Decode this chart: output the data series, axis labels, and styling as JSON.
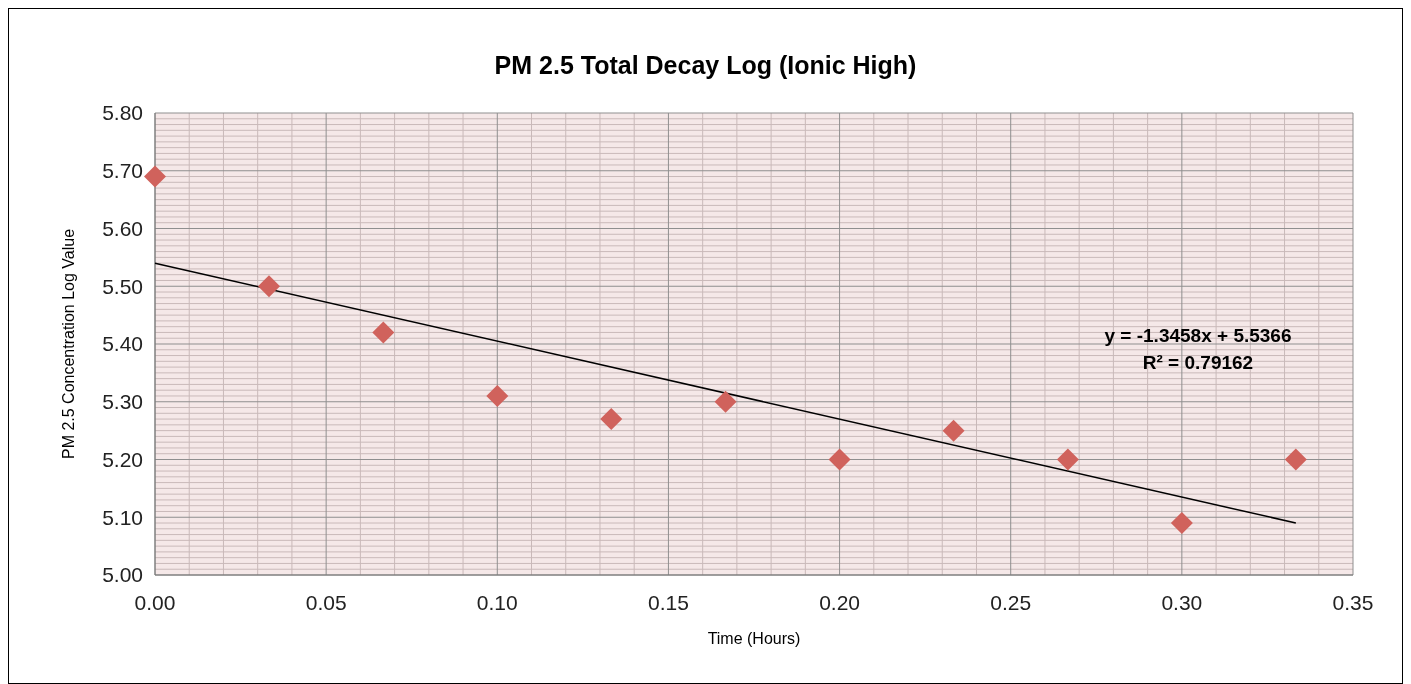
{
  "chart_data": {
    "type": "scatter",
    "title": "PM 2.5 Total Decay Log (Ionic High)",
    "xlabel": "Time (Hours)",
    "ylabel": "PM 2.5 Concentration Log Value",
    "xlim": [
      0,
      0.35
    ],
    "xticks": [
      {
        "value": 0,
        "label": "0.00"
      },
      {
        "value": 0.05,
        "label": "0.05"
      },
      {
        "value": 0.1,
        "label": "0.10"
      },
      {
        "value": 0.15,
        "label": "0.15"
      },
      {
        "value": 0.2,
        "label": "0.20"
      },
      {
        "value": 0.25,
        "label": "0.25"
      },
      {
        "value": 0.3,
        "label": "0.30"
      },
      {
        "value": 0.35,
        "label": "0.35"
      }
    ],
    "ylim": [
      5,
      5.8
    ],
    "yticks": [
      {
        "value": 5,
        "label": "5.00"
      },
      {
        "value": 5.1,
        "label": "5.10"
      },
      {
        "value": 5.2,
        "label": "5.20"
      },
      {
        "value": 5.3,
        "label": "5.30"
      },
      {
        "value": 5.4,
        "label": "5.40"
      },
      {
        "value": 5.5,
        "label": "5.50"
      },
      {
        "value": 5.6,
        "label": "5.60"
      },
      {
        "value": 5.7,
        "label": "5.70"
      },
      {
        "value": 5.8,
        "label": "5.80"
      }
    ],
    "grid": true,
    "series": [
      {
        "marker": "diamond",
        "color": "#d0625c",
        "x": [
          0,
          0.0333,
          0.0667,
          0.1,
          0.1333,
          0.1667,
          0.2,
          0.2333,
          0.2667,
          0.3,
          0.3333
        ],
        "values": [
          5.69,
          5.5,
          5.42,
          5.31,
          5.27,
          5.3,
          5.2,
          5.25,
          5.2,
          5.09,
          5.2
        ]
      },
      {
        "type": "line",
        "marker": "none",
        "line_style": "solid",
        "color": "#000000",
        "x": [
          0,
          0.3333
        ],
        "values": [
          5.54,
          5.09
        ]
      }
    ],
    "annotations": [
      "y = -1.3458x + 5.5366",
      "R² = 0.79162"
    ]
  }
}
